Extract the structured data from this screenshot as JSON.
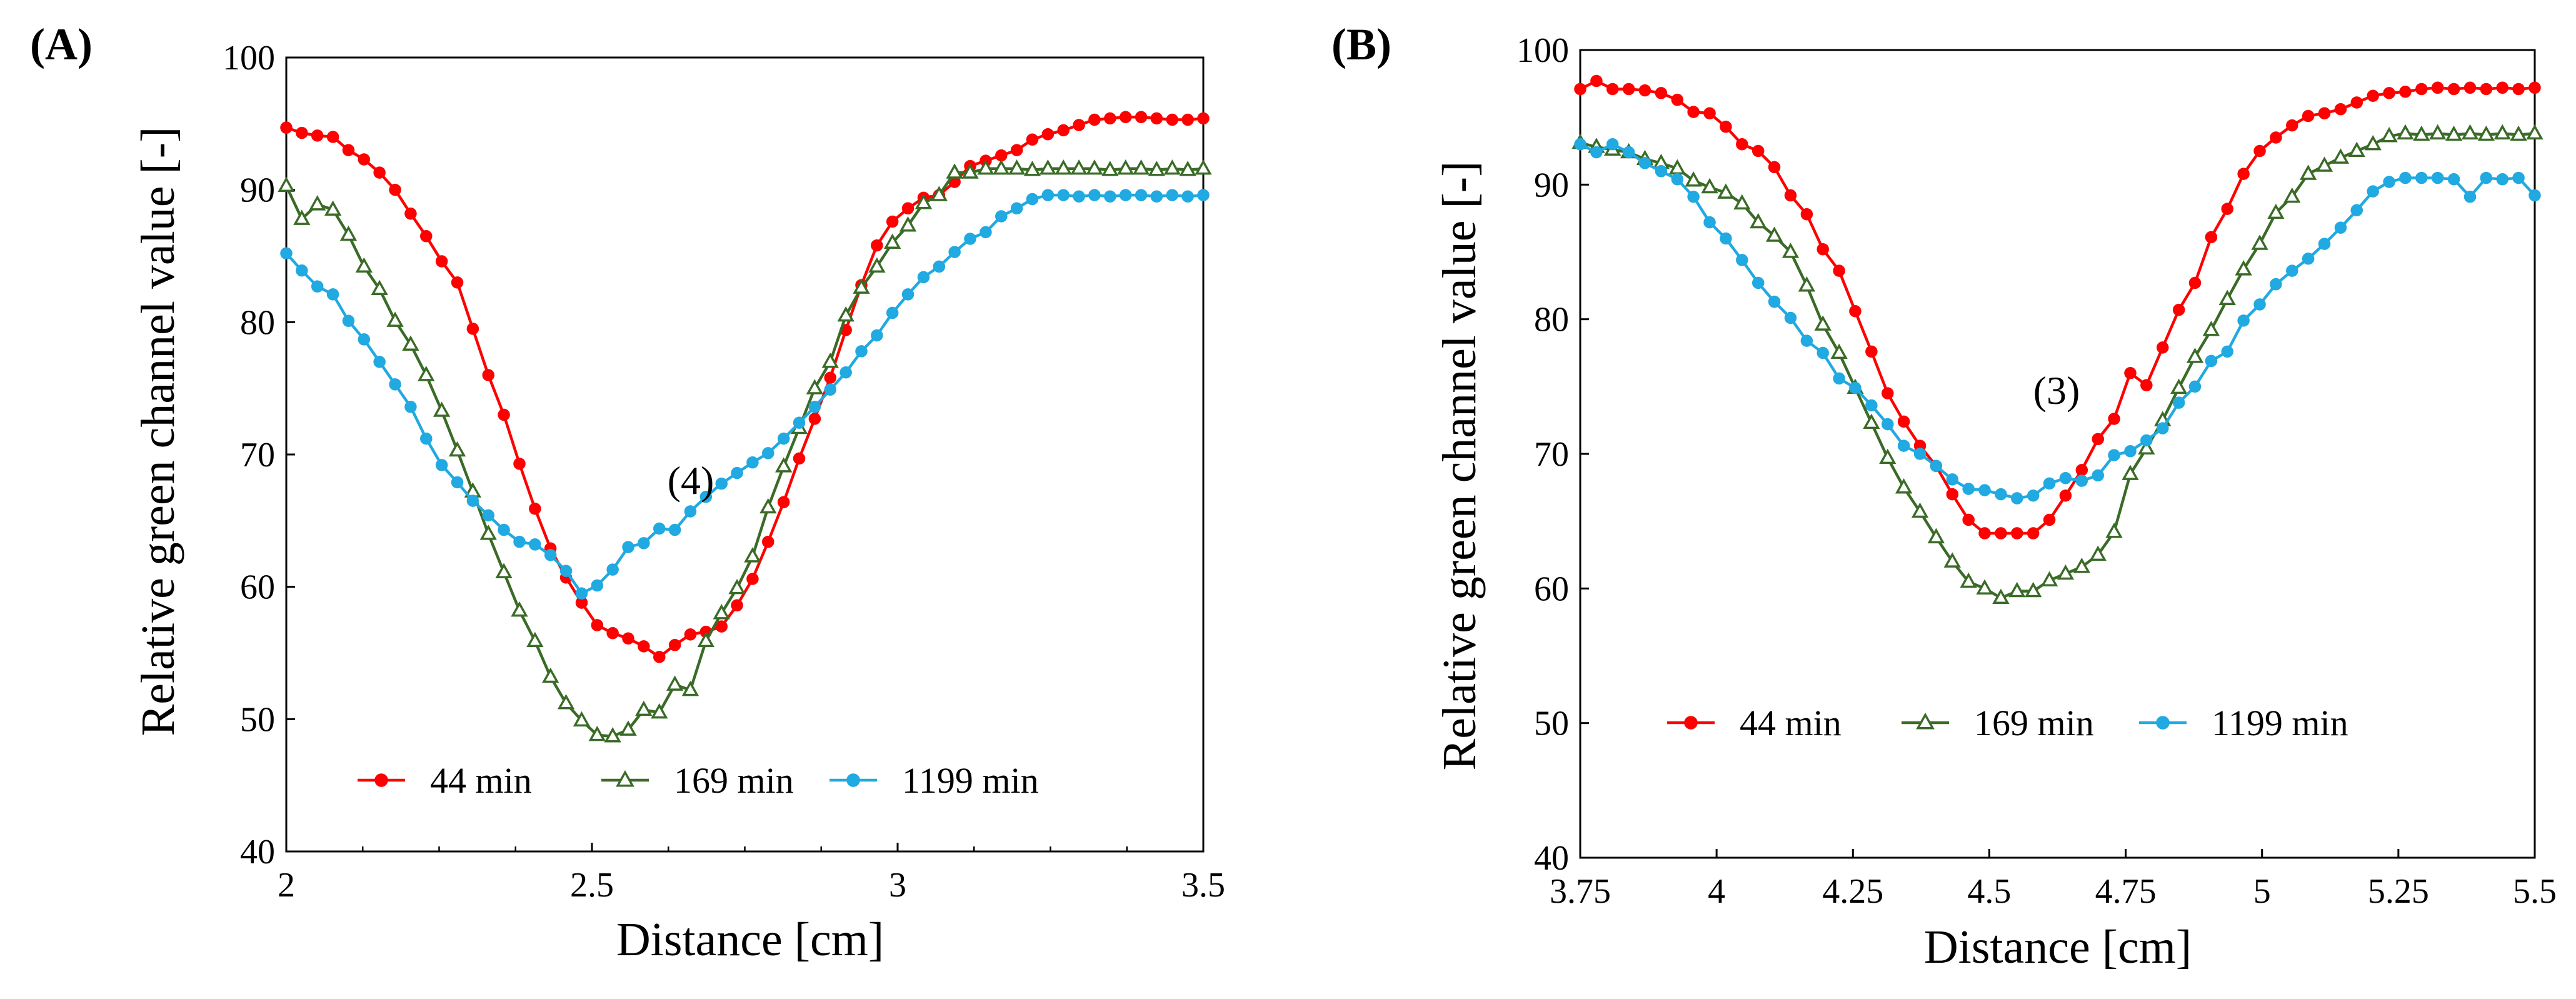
{
  "chart_data": [
    {
      "type": "line",
      "panel_label": "(A)",
      "annotation": "(4)",
      "xlabel": "Distance [cm]",
      "ylabel": "Relative green channel value [-]",
      "xlim": [
        2,
        3.5
      ],
      "ylim": [
        40,
        100
      ],
      "xticks": [
        2,
        2.5,
        3,
        3.5
      ],
      "xtick_labels": [
        "2",
        "2.5",
        "3",
        "3.5"
      ],
      "yticks": [
        40,
        50,
        60,
        70,
        80,
        90,
        100
      ],
      "ytick_labels": [
        "40",
        "50",
        "60",
        "70",
        "80",
        "90",
        "100"
      ],
      "grid": false,
      "legend_position": "bottom-center",
      "series": [
        {
          "name": "44 min",
          "label": "44 min",
          "color": "#ff0000",
          "marker": "circle",
          "x": [
            2.0,
            2.0254,
            2.0508,
            2.0763,
            2.1017,
            2.1271,
            2.1525,
            2.178,
            2.2034,
            2.2288,
            2.2542,
            2.2797,
            2.3051,
            2.3305,
            2.3559,
            2.3814,
            2.4068,
            2.4322,
            2.4576,
            2.4831,
            2.5085,
            2.5339,
            2.5593,
            2.5847,
            2.6102,
            2.6356,
            2.661,
            2.6864,
            2.7119,
            2.7373,
            2.7627,
            2.7881,
            2.8136,
            2.839,
            2.8644,
            2.8898,
            2.9153,
            2.9407,
            2.9661,
            2.9915,
            3.0169,
            3.0424,
            3.0678,
            3.0932,
            3.1186,
            3.1441,
            3.1695,
            3.1949,
            3.2203,
            3.2458,
            3.2712,
            3.2966,
            3.322,
            3.3475,
            3.3729,
            3.3983,
            3.4237,
            3.4492,
            3.4746,
            3.5
          ],
          "y": [
            94.7,
            94.3,
            94.1,
            94.0,
            93.0,
            92.3,
            91.3,
            90.0,
            88.2,
            86.5,
            84.6,
            83.0,
            79.5,
            76.0,
            73.0,
            69.3,
            65.9,
            62.9,
            60.7,
            58.8,
            57.1,
            56.5,
            56.1,
            55.5,
            54.7,
            55.6,
            56.4,
            56.6,
            57.0,
            58.6,
            60.6,
            63.4,
            66.4,
            69.7,
            72.7,
            75.8,
            79.4,
            82.8,
            85.8,
            87.6,
            88.6,
            89.4,
            89.6,
            90.6,
            91.8,
            92.2,
            92.6,
            93.0,
            93.8,
            94.2,
            94.5,
            94.9,
            95.3,
            95.4,
            95.5,
            95.5,
            95.4,
            95.3,
            95.3,
            95.4
          ]
        },
        {
          "name": "169 min",
          "label": "169 min",
          "color": "#3a6b27",
          "marker": "triangle",
          "x": [
            2.0,
            2.0254,
            2.0508,
            2.0763,
            2.1017,
            2.1271,
            2.1525,
            2.178,
            2.2034,
            2.2288,
            2.2542,
            2.2797,
            2.3051,
            2.3305,
            2.3559,
            2.3814,
            2.4068,
            2.4322,
            2.4576,
            2.4831,
            2.5085,
            2.5339,
            2.5593,
            2.5847,
            2.6102,
            2.6356,
            2.661,
            2.6864,
            2.7119,
            2.7373,
            2.7627,
            2.7881,
            2.8136,
            2.839,
            2.8644,
            2.8898,
            2.9153,
            2.9407,
            2.9661,
            2.9915,
            3.0169,
            3.0424,
            3.0678,
            3.0932,
            3.1186,
            3.1441,
            3.1695,
            3.1949,
            3.2203,
            3.2458,
            3.2712,
            3.2966,
            3.322,
            3.3475,
            3.3729,
            3.3983,
            3.4237,
            3.4492,
            3.4746,
            3.5
          ],
          "y": [
            90.3,
            87.8,
            88.9,
            88.5,
            86.6,
            84.2,
            82.5,
            80.1,
            78.3,
            76.0,
            73.3,
            70.3,
            67.2,
            64.0,
            61.1,
            58.2,
            55.9,
            53.2,
            51.2,
            49.9,
            48.8,
            48.7,
            49.2,
            50.7,
            50.5,
            52.6,
            52.2,
            55.9,
            58.0,
            59.9,
            62.3,
            66.0,
            69.1,
            72.0,
            75.0,
            77.0,
            80.5,
            82.6,
            84.2,
            86.0,
            87.3,
            89.0,
            89.6,
            91.3,
            91.3,
            91.6,
            91.6,
            91.6,
            91.5,
            91.6,
            91.6,
            91.6,
            91.6,
            91.5,
            91.6,
            91.6,
            91.5,
            91.6,
            91.5,
            91.6
          ]
        },
        {
          "name": "1199 min",
          "label": "1199 min",
          "color": "#21a9e1",
          "marker": "circle",
          "x": [
            2.0,
            2.0254,
            2.0508,
            2.0763,
            2.1017,
            2.1271,
            2.1525,
            2.178,
            2.2034,
            2.2288,
            2.2542,
            2.2797,
            2.3051,
            2.3305,
            2.3559,
            2.3814,
            2.4068,
            2.4322,
            2.4576,
            2.4831,
            2.5085,
            2.5339,
            2.5593,
            2.5847,
            2.6102,
            2.6356,
            2.661,
            2.6864,
            2.7119,
            2.7373,
            2.7627,
            2.7881,
            2.8136,
            2.839,
            2.8644,
            2.8898,
            2.9153,
            2.9407,
            2.9661,
            2.9915,
            3.0169,
            3.0424,
            3.0678,
            3.0932,
            3.1186,
            3.1441,
            3.1695,
            3.1949,
            3.2203,
            3.2458,
            3.2712,
            3.2966,
            3.322,
            3.3475,
            3.3729,
            3.3983,
            3.4237,
            3.4492,
            3.4746,
            3.5
          ],
          "y": [
            85.2,
            83.9,
            82.7,
            82.1,
            80.1,
            78.7,
            77.0,
            75.3,
            73.6,
            71.2,
            69.2,
            67.9,
            66.5,
            65.4,
            64.3,
            63.4,
            63.2,
            62.4,
            61.2,
            59.5,
            60.1,
            61.3,
            63.0,
            63.3,
            64.4,
            64.3,
            65.7,
            66.8,
            67.8,
            68.6,
            69.4,
            70.1,
            71.2,
            72.4,
            73.6,
            74.9,
            76.2,
            77.8,
            79.0,
            80.7,
            82.1,
            83.4,
            84.2,
            85.3,
            86.3,
            86.8,
            88.0,
            88.6,
            89.3,
            89.6,
            89.6,
            89.5,
            89.6,
            89.5,
            89.6,
            89.6,
            89.5,
            89.6,
            89.5,
            89.6
          ]
        }
      ]
    },
    {
      "type": "line",
      "panel_label": "(B)",
      "annotation": "(3)",
      "xlabel": "Distance [cm]",
      "ylabel": "Relative green channel value [-]",
      "xlim": [
        3.75,
        5.5
      ],
      "ylim": [
        40,
        100
      ],
      "xticks": [
        3.75,
        4,
        4.25,
        4.5,
        4.75,
        5,
        5.25,
        5.5
      ],
      "xtick_labels": [
        "3.75",
        "4",
        "4.25",
        "4.5",
        "4.75",
        "5",
        "5.25",
        "5.5"
      ],
      "yticks": [
        40,
        50,
        60,
        70,
        80,
        90,
        100
      ],
      "ytick_labels": [
        "40",
        "50",
        "60",
        "70",
        "80",
        "90",
        "100"
      ],
      "grid": false,
      "legend_position": "bottom-center",
      "series": [
        {
          "name": "44 min",
          "label": "44 min",
          "color": "#ff0000",
          "marker": "circle",
          "x": [
            3.75,
            3.7797,
            3.8093,
            3.839,
            3.8686,
            3.8983,
            3.928,
            3.9576,
            3.9873,
            4.0169,
            4.0466,
            4.0763,
            4.1059,
            4.1356,
            4.1653,
            4.1949,
            4.2246,
            4.2542,
            4.2839,
            4.3136,
            4.3432,
            4.3729,
            4.4025,
            4.4322,
            4.4619,
            4.4915,
            4.5212,
            4.5508,
            4.5805,
            4.6102,
            4.6398,
            4.6695,
            4.6992,
            4.7288,
            4.7585,
            4.7881,
            4.8178,
            4.8475,
            4.8771,
            4.9068,
            4.9364,
            4.9661,
            4.9958,
            5.0254,
            5.0551,
            5.0847,
            5.1144,
            5.1441,
            5.1737,
            5.2034,
            5.2331,
            5.2627,
            5.2924,
            5.322,
            5.3517,
            5.3814,
            5.411,
            5.4407,
            5.4703,
            5.5
          ],
          "y": [
            97.1,
            97.7,
            97.1,
            97.1,
            97.0,
            96.8,
            96.3,
            95.4,
            95.3,
            94.3,
            93.0,
            92.5,
            91.3,
            89.2,
            87.8,
            85.2,
            83.6,
            80.6,
            77.6,
            74.5,
            72.4,
            70.6,
            69.1,
            67.0,
            65.1,
            64.1,
            64.1,
            64.1,
            64.1,
            65.1,
            66.9,
            68.8,
            71.1,
            72.6,
            76.0,
            75.1,
            77.9,
            80.7,
            82.7,
            86.1,
            88.2,
            90.8,
            92.5,
            93.5,
            94.4,
            95.1,
            95.3,
            95.6,
            96.1,
            96.6,
            96.8,
            96.9,
            97.1,
            97.2,
            97.1,
            97.2,
            97.1,
            97.2,
            97.1,
            97.2
          ]
        },
        {
          "name": "169 min",
          "label": "169 min",
          "color": "#3a6b27",
          "marker": "triangle",
          "x": [
            3.75,
            3.7797,
            3.8093,
            3.839,
            3.8686,
            3.8983,
            3.928,
            3.9576,
            3.9873,
            4.0169,
            4.0466,
            4.0763,
            4.1059,
            4.1356,
            4.1653,
            4.1949,
            4.2246,
            4.2542,
            4.2839,
            4.3136,
            4.3432,
            4.3729,
            4.4025,
            4.4322,
            4.4619,
            4.4915,
            4.5212,
            4.5508,
            4.5805,
            4.6102,
            4.6398,
            4.6695,
            4.6992,
            4.7288,
            4.7585,
            4.7881,
            4.8178,
            4.8475,
            4.8771,
            4.9068,
            4.9364,
            4.9661,
            4.9958,
            5.0254,
            5.0551,
            5.0847,
            5.1144,
            5.1441,
            5.1737,
            5.2034,
            5.2331,
            5.2627,
            5.2924,
            5.322,
            5.3517,
            5.3814,
            5.411,
            5.4407,
            5.4703,
            5.5
          ],
          "y": [
            93.1,
            92.8,
            92.6,
            92.4,
            91.9,
            91.6,
            91.2,
            90.3,
            89.8,
            89.4,
            88.6,
            87.2,
            86.2,
            85.0,
            82.5,
            79.6,
            77.5,
            74.9,
            72.3,
            69.7,
            67.5,
            65.7,
            63.8,
            62.0,
            60.5,
            60.0,
            59.3,
            59.8,
            59.8,
            60.6,
            61.1,
            61.6,
            62.5,
            64.2,
            68.5,
            70.4,
            72.5,
            74.9,
            77.2,
            79.2,
            81.5,
            83.7,
            85.6,
            87.9,
            89.1,
            90.8,
            91.4,
            92.0,
            92.5,
            93.0,
            93.6,
            93.8,
            93.7,
            93.8,
            93.7,
            93.8,
            93.7,
            93.8,
            93.7,
            93.8
          ]
        },
        {
          "name": "1199 min",
          "label": "1199 min",
          "color": "#21a9e1",
          "marker": "circle",
          "x": [
            3.75,
            3.7797,
            3.8093,
            3.839,
            3.8686,
            3.8983,
            3.928,
            3.9576,
            3.9873,
            4.0169,
            4.0466,
            4.0763,
            4.1059,
            4.1356,
            4.1653,
            4.1949,
            4.2246,
            4.2542,
            4.2839,
            4.3136,
            4.3432,
            4.3729,
            4.4025,
            4.4322,
            4.4619,
            4.4915,
            4.5212,
            4.5508,
            4.5805,
            4.6102,
            4.6398,
            4.6695,
            4.6992,
            4.7288,
            4.7585,
            4.7881,
            4.8178,
            4.8475,
            4.8771,
            4.9068,
            4.9364,
            4.9661,
            4.9958,
            5.0254,
            5.0551,
            5.0847,
            5.1144,
            5.1441,
            5.1737,
            5.2034,
            5.2331,
            5.2627,
            5.2924,
            5.322,
            5.3517,
            5.3814,
            5.411,
            5.4407,
            5.4703,
            5.5
          ],
          "y": [
            93.0,
            92.4,
            93.0,
            92.4,
            91.6,
            91.0,
            90.4,
            89.1,
            87.2,
            86.0,
            84.4,
            82.7,
            81.3,
            80.1,
            78.4,
            77.5,
            75.6,
            74.9,
            73.6,
            72.2,
            70.6,
            70.0,
            69.1,
            68.1,
            67.4,
            67.3,
            67.0,
            66.7,
            66.9,
            67.8,
            68.2,
            68.0,
            68.4,
            69.9,
            70.2,
            71.0,
            71.9,
            73.8,
            75.0,
            76.9,
            77.6,
            79.9,
            81.1,
            82.6,
            83.6,
            84.5,
            85.6,
            86.8,
            88.1,
            89.5,
            90.2,
            90.5,
            90.5,
            90.5,
            90.4,
            89.1,
            90.5,
            90.4,
            90.5,
            89.2
          ]
        }
      ]
    }
  ]
}
